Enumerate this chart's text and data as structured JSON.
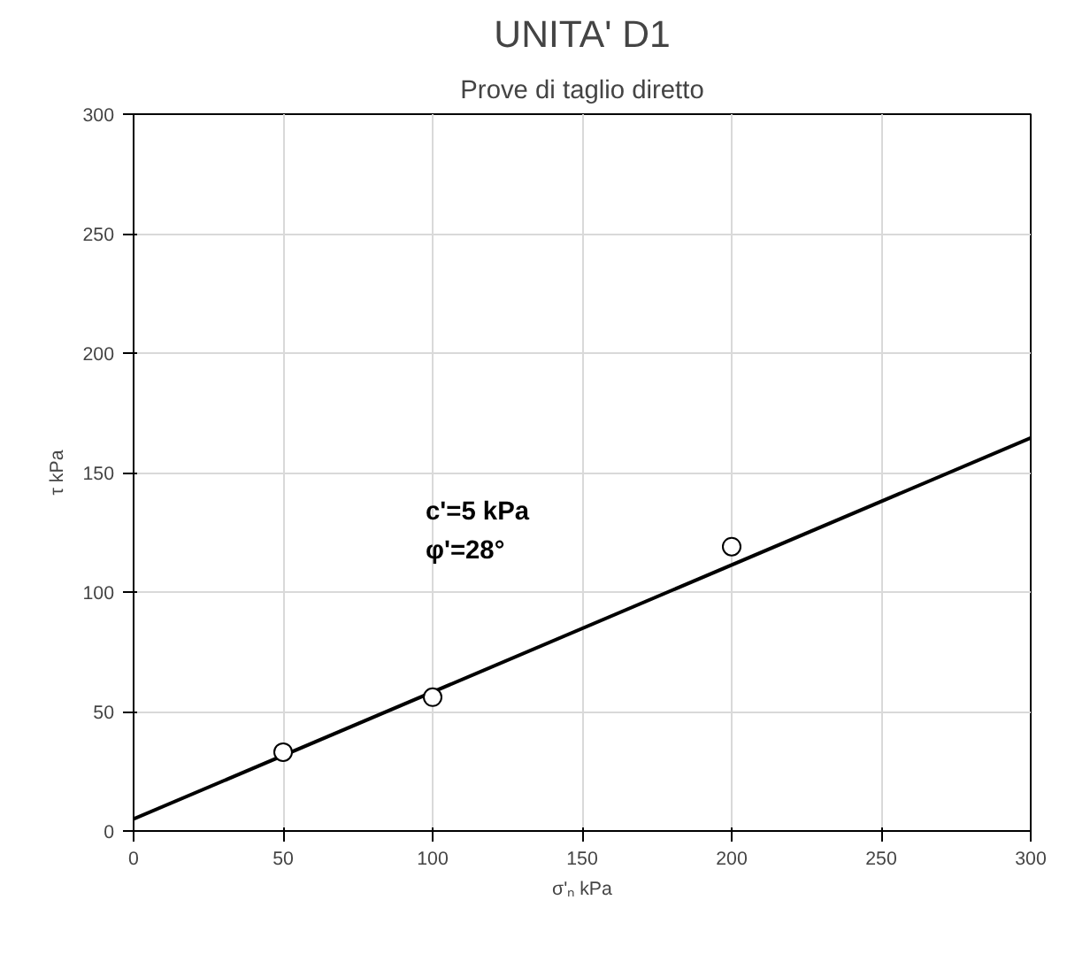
{
  "chart_data": {
    "type": "scatter",
    "title": "UNITA' D1",
    "subtitle": "Prove di taglio diretto",
    "xlabel": "σ'ₙ kPa",
    "ylabel": "τ kPa",
    "x": [
      50,
      100,
      200
    ],
    "series": [
      {
        "color": "#000000",
        "values": [
          33,
          56,
          119
        ],
        "marker": "circle"
      },
      {
        "type": "line",
        "color": "#000000",
        "x": [
          0,
          300
        ],
        "values": [
          5,
          164.5
        ],
        "marker": "none",
        "line_style": "solid"
      }
    ],
    "xlim": [
      0,
      300
    ],
    "ylim": [
      0,
      300
    ],
    "xticks": [
      0,
      50,
      100,
      150,
      200,
      250,
      300
    ],
    "yticks": [
      0,
      50,
      100,
      150,
      200,
      250,
      300
    ],
    "grid": true,
    "annotations": [
      "c'=5 kPa",
      "φ'=28°"
    ]
  }
}
